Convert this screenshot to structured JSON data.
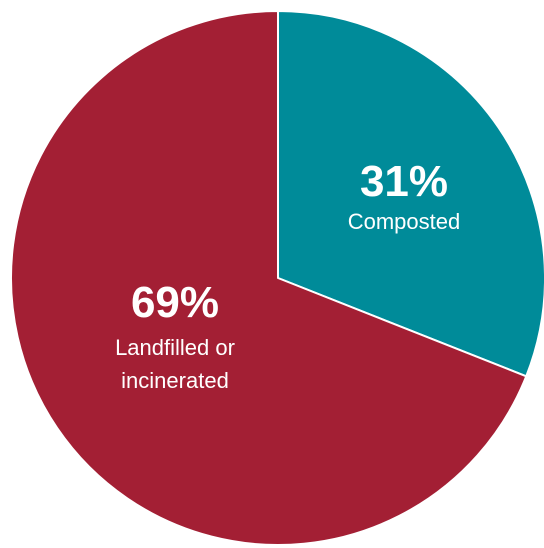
{
  "chart_data": {
    "type": "pie",
    "title": "",
    "start_angle_deg": 0,
    "direction": "clockwise",
    "slices": [
      {
        "value_label": "31%",
        "label_lines": [
          "Composted"
        ],
        "value": 31,
        "color": "#008b99"
      },
      {
        "value_label": "69%",
        "label_lines": [
          "Landfilled or",
          "incinerated"
        ],
        "value": 69,
        "color": "#a31f34"
      }
    ],
    "slice_border_color": "#ffffff"
  }
}
